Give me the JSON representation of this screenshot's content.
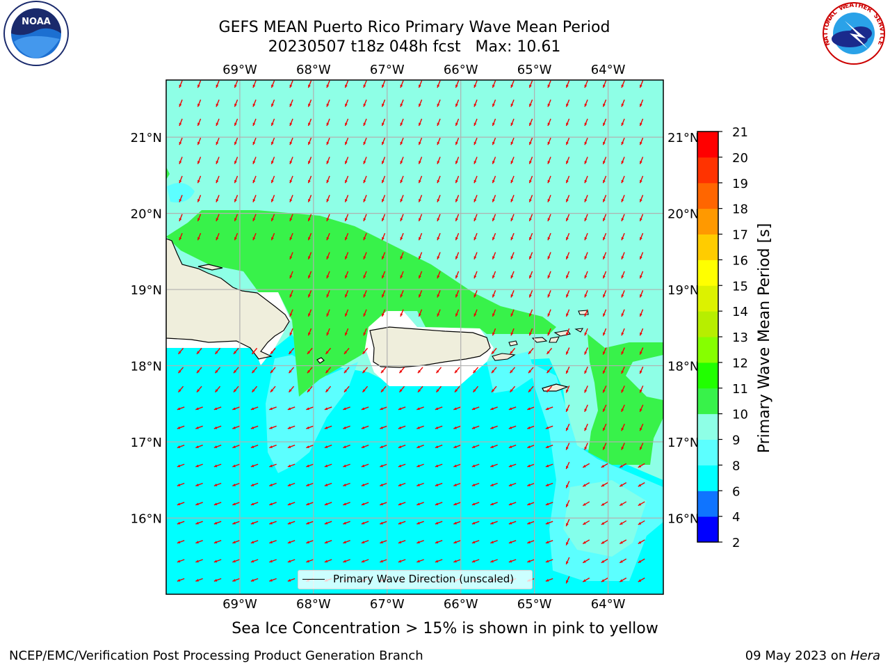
{
  "title": {
    "line1": "GEFS MEAN Puerto Rico Primary Wave Mean Period",
    "line2": "20230507 t18z 048h fcst   Max: 10.61"
  },
  "logos": {
    "left": "NOAA",
    "right": "NATIONAL WEATHER SERVICE"
  },
  "map": {
    "lon_labels": [
      "69°W",
      "68°W",
      "67°W",
      "66°W",
      "65°W",
      "64°W"
    ],
    "lat_labels": [
      "21°N",
      "20°N",
      "19°N",
      "18°N",
      "17°N",
      "16°N"
    ],
    "lon_values": [
      -69,
      -68,
      -67,
      -66,
      -65,
      -64
    ],
    "lat_values": [
      21,
      20,
      19,
      18,
      17,
      16
    ],
    "extent": {
      "lon": [
        -70,
        -63.25
      ],
      "lat": [
        15,
        21.75
      ]
    },
    "legend": "Primary Wave Direction (unscaled)",
    "arrow_direction_deg": "from NE (toward SW)"
  },
  "colorbar": {
    "label": "Primary Wave Mean Period [s]",
    "ticks": [
      "2",
      "4",
      "6",
      "8",
      "9",
      "10",
      "11",
      "12",
      "13",
      "14",
      "15",
      "16",
      "17",
      "18",
      "19",
      "20",
      "21"
    ],
    "colors": [
      "#0000ff",
      "#0f74ff",
      "#00ffff",
      "#5cffff",
      "#8effe6",
      "#38f24a",
      "#21ff00",
      "#86ff00",
      "#b7ee00",
      "#dcf200",
      "#ffff00",
      "#ffcc00",
      "#ff9900",
      "#ff6600",
      "#ff3300",
      "#ff0000"
    ]
  },
  "ice_note": "Sea Ice Concentration > 15% is shown in pink to yellow",
  "footer": {
    "left": "NCEP/EMC/Verification Post Processing Product Generation Branch",
    "right_date": "09 May 2023 on ",
    "right_host": "Hera"
  }
}
